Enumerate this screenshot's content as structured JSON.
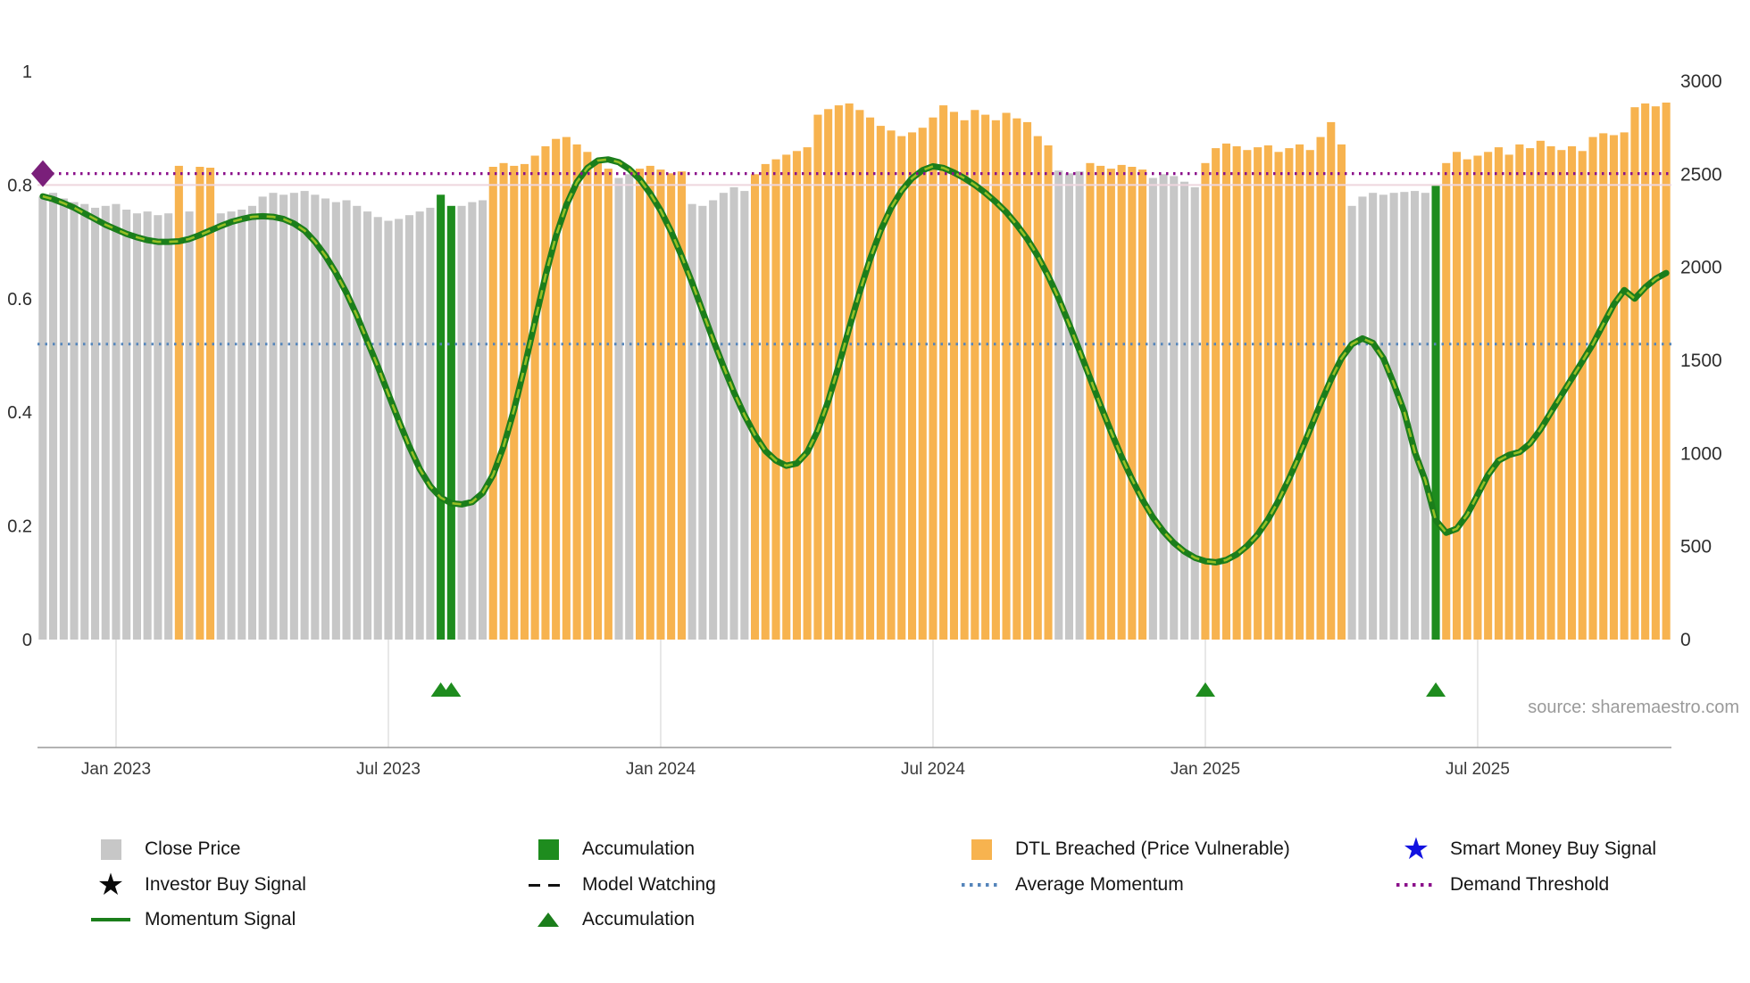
{
  "source_text": "source: sharemaestro.com",
  "colors": {
    "close_bar": "#c7c7c7",
    "dtl_bar": "#f7b34f",
    "accum_bar": "#1e8c1e",
    "momentum": "#1b7e1b",
    "momentum_core": "#96be25",
    "avg_momentum": "#5585bb",
    "demand": "#8b108b",
    "demand_marker": "#7a1f7a",
    "watch_line": "#eed6de",
    "smart_money_star": "#1212e0",
    "investor_star": "#0a0a0a",
    "model_watch": "#111111",
    "axis_text": "#2e2e2e",
    "grid": "#e0e0e0"
  },
  "chart_data": {
    "type": "bar+line combo (weekly price bars on right axis, momentum line on left axis)",
    "title": "",
    "x_ticks": [
      {
        "index": 7,
        "label": "Jan 2023"
      },
      {
        "index": 33,
        "label": "Jul 2023"
      },
      {
        "index": 59,
        "label": "Jan 2024"
      },
      {
        "index": 85,
        "label": "Jul 2024"
      },
      {
        "index": 111,
        "label": "Jan 2025"
      },
      {
        "index": 137,
        "label": "Jul 2025"
      }
    ],
    "left_axis": {
      "min": 0,
      "max": 1,
      "ticks": [
        1,
        0.8,
        0.6,
        0.4,
        0.2,
        0
      ]
    },
    "right_axis": {
      "min": 0,
      "max": 3000,
      "ticks": [
        3000,
        2500,
        2000,
        1500,
        1000,
        500,
        0
      ]
    },
    "bars": {
      "name": "Close Price",
      "values": [
        2380,
        2400,
        2370,
        2350,
        2340,
        2320,
        2330,
        2340,
        2310,
        2290,
        2300,
        2280,
        2290,
        2545,
        2300,
        2540,
        2535,
        2290,
        2300,
        2310,
        2330,
        2380,
        2400,
        2390,
        2400,
        2410,
        2390,
        2370,
        2350,
        2360,
        2330,
        2300,
        2270,
        2250,
        2260,
        2280,
        2300,
        2320,
        2390,
        2330,
        2330,
        2350,
        2360,
        2540,
        2560,
        2545,
        2555,
        2600,
        2650,
        2690,
        2700,
        2660,
        2620,
        2570,
        2530,
        2480,
        2500,
        2530,
        2545,
        2525,
        2505,
        2515,
        2340,
        2330,
        2360,
        2400,
        2430,
        2410,
        2500,
        2555,
        2580,
        2605,
        2625,
        2645,
        2820,
        2850,
        2870,
        2880,
        2845,
        2805,
        2760,
        2735,
        2705,
        2725,
        2750,
        2805,
        2870,
        2835,
        2790,
        2845,
        2820,
        2790,
        2830,
        2800,
        2780,
        2705,
        2655,
        2520,
        2505,
        2515,
        2560,
        2545,
        2530,
        2550,
        2540,
        2525,
        2480,
        2500,
        2490,
        2460,
        2430,
        2560,
        2640,
        2665,
        2650,
        2630,
        2645,
        2655,
        2620,
        2640,
        2660,
        2630,
        2700,
        2780,
        2660,
        2330,
        2380,
        2400,
        2390,
        2400,
        2405,
        2410,
        2400,
        2440,
        2560,
        2620,
        2580,
        2600,
        2620,
        2645,
        2605,
        2660,
        2640,
        2680,
        2650,
        2630,
        2650,
        2625,
        2700,
        2720,
        2710,
        2725,
        2860,
        2880,
        2865,
        2885
      ],
      "color_runs": [
        [
          13,
          "c"
        ],
        [
          1,
          "d"
        ],
        [
          1,
          "c"
        ],
        [
          2,
          "d"
        ],
        [
          21,
          "c"
        ],
        [
          2,
          "a"
        ],
        [
          3,
          "c"
        ],
        [
          12,
          "d"
        ],
        [
          2,
          "c"
        ],
        [
          5,
          "d"
        ],
        [
          6,
          "c"
        ],
        [
          29,
          "d"
        ],
        [
          3,
          "c"
        ],
        [
          6,
          "d"
        ],
        [
          5,
          "c"
        ],
        [
          14,
          "d"
        ],
        [
          8,
          "c"
        ],
        [
          1,
          "a"
        ],
        [
          22,
          "d"
        ]
      ],
      "color_key": {
        "c": "Close Price",
        "d": "DTL Breached (Price Vulnerable)",
        "a": "Accumulation"
      }
    },
    "momentum": {
      "name": "Momentum Signal",
      "values": [
        0.78,
        0.775,
        0.768,
        0.76,
        0.75,
        0.74,
        0.73,
        0.722,
        0.714,
        0.708,
        0.703,
        0.7,
        0.7,
        0.701,
        0.705,
        0.712,
        0.72,
        0.728,
        0.735,
        0.74,
        0.744,
        0.745,
        0.744,
        0.74,
        0.732,
        0.72,
        0.7,
        0.675,
        0.645,
        0.61,
        0.57,
        0.525,
        0.48,
        0.432,
        0.385,
        0.34,
        0.3,
        0.27,
        0.25,
        0.24,
        0.238,
        0.242,
        0.258,
        0.29,
        0.34,
        0.405,
        0.48,
        0.56,
        0.64,
        0.71,
        0.765,
        0.805,
        0.83,
        0.843,
        0.845,
        0.84,
        0.828,
        0.81,
        0.785,
        0.755,
        0.718,
        0.675,
        0.628,
        0.578,
        0.528,
        0.48,
        0.435,
        0.395,
        0.36,
        0.332,
        0.315,
        0.306,
        0.31,
        0.33,
        0.368,
        0.42,
        0.482,
        0.548,
        0.612,
        0.67,
        0.72,
        0.76,
        0.79,
        0.812,
        0.826,
        0.833,
        0.83,
        0.822,
        0.812,
        0.8,
        0.786,
        0.77,
        0.752,
        0.73,
        0.705,
        0.675,
        0.64,
        0.6,
        0.555,
        0.508,
        0.46,
        0.412,
        0.366,
        0.322,
        0.282,
        0.246,
        0.215,
        0.19,
        0.17,
        0.155,
        0.144,
        0.138,
        0.136,
        0.14,
        0.15,
        0.165,
        0.185,
        0.212,
        0.245,
        0.283,
        0.325,
        0.37,
        0.415,
        0.458,
        0.495,
        0.52,
        0.53,
        0.522,
        0.495,
        0.45,
        0.4,
        0.33,
        0.28,
        0.21,
        0.188,
        0.195,
        0.22,
        0.255,
        0.29,
        0.315,
        0.325,
        0.33,
        0.345,
        0.37,
        0.4,
        0.43,
        0.46,
        0.49,
        0.52,
        0.555,
        0.59,
        0.615,
        0.6,
        0.62,
        0.635,
        0.645
      ]
    },
    "average_momentum": 0.52,
    "demand_threshold": 0.82,
    "model_watching_level": 0.8,
    "accumulation_marker_indices": [
      38,
      39,
      111,
      133
    ]
  },
  "legend": {
    "items": [
      {
        "label": "Close Price",
        "icon": "close-price-square",
        "type": "square",
        "color": "#c7c7c7",
        "col": 0,
        "row": 0
      },
      {
        "label": "Accumulation",
        "icon": "accumulation-square",
        "type": "square",
        "color": "#1e8c1e",
        "col": 1,
        "row": 0
      },
      {
        "label": "DTL Breached (Price Vulnerable)",
        "icon": "dtl-breached-square",
        "type": "square",
        "color": "#f7b34f",
        "col": 2,
        "row": 0
      },
      {
        "label": "Smart Money Buy Signal",
        "icon": "blue-star",
        "type": "star",
        "color": "#1212e0",
        "col": 3,
        "row": 0
      },
      {
        "label": "Investor Buy Signal",
        "icon": "black-star",
        "type": "star",
        "color": "#0a0a0a",
        "col": 0,
        "row": 1
      },
      {
        "label": "Model Watching",
        "icon": "black-dashed-line",
        "type": "dashed",
        "color": "#111111",
        "col": 1,
        "row": 1
      },
      {
        "label": "Average Momentum",
        "icon": "blue-dotted-line",
        "type": "dotted",
        "color": "#5585bb",
        "col": 2,
        "row": 1
      },
      {
        "label": "Demand Threshold",
        "icon": "purple-dotted-line",
        "type": "dotted",
        "color": "#8b108b",
        "col": 3,
        "row": 1
      },
      {
        "label": "Momentum Signal",
        "icon": "green-line",
        "type": "line",
        "color": "#1b7e1b",
        "col": 0,
        "row": 2
      },
      {
        "label": "Accumulation",
        "icon": "green-triangle",
        "type": "triangle",
        "color": "#1b7e1b",
        "col": 1,
        "row": 2
      }
    ]
  }
}
